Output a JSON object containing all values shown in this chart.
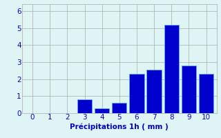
{
  "categories": [
    0,
    1,
    2,
    3,
    4,
    5,
    6,
    7,
    8,
    9,
    10
  ],
  "values": [
    0,
    0,
    0,
    0.8,
    0.3,
    0.6,
    2.3,
    2.55,
    5.2,
    2.8,
    2.3
  ],
  "bar_color": "#0000cc",
  "bar_edge_color": "#55aaff",
  "background_color": "#dff4f4",
  "grid_color": "#aaaaaa",
  "xlabel": "Précipitations 1h ( mm )",
  "xlabel_color": "#0000cc",
  "tick_color": "#0000cc",
  "ylim": [
    0,
    6.4
  ],
  "yticks": [
    0,
    1,
    2,
    3,
    4,
    5,
    6
  ],
  "xlim": [
    -0.6,
    10.6
  ],
  "xticks": [
    0,
    1,
    2,
    3,
    4,
    5,
    6,
    7,
    8,
    9,
    10
  ],
  "bar_width": 0.85,
  "tick_fontsize": 7.5,
  "xlabel_fontsize": 7.5
}
